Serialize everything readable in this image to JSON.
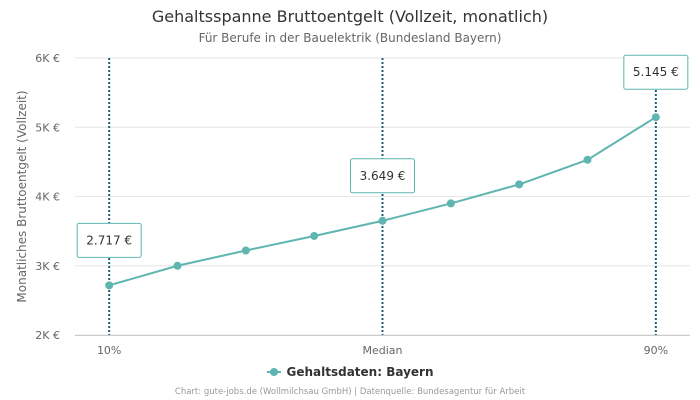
{
  "chart_data": {
    "type": "line",
    "title": "Gehaltsspanne Bruttoentgelt (Vollzeit, monatlich)",
    "subtitle": "Für Berufe in der Bauelektrik (Bundesland Bayern)",
    "ylabel": "Monatliches Bruttoentgelt (Vollzeit)",
    "xlabel": "",
    "ylim": [
      2000,
      6000
    ],
    "yticks": [
      {
        "value": 2000,
        "label": "2K €"
      },
      {
        "value": 3000,
        "label": "3K €"
      },
      {
        "value": 4000,
        "label": "4K €"
      },
      {
        "value": 5000,
        "label": "5K €"
      },
      {
        "value": 6000,
        "label": "6K €"
      }
    ],
    "x": [
      10,
      20,
      30,
      40,
      50,
      60,
      70,
      80,
      90
    ],
    "xticks": [
      {
        "value": 10,
        "label": "10%"
      },
      {
        "value": 50,
        "label": "Median"
      },
      {
        "value": 90,
        "label": "90%"
      }
    ],
    "series": [
      {
        "name": "Gehaltsdaten: Bayern",
        "color": "#5fb5b0",
        "values": [
          2717,
          3000,
          3220,
          3430,
          3649,
          3900,
          4175,
          4530,
          5145
        ]
      }
    ],
    "annotations": [
      {
        "x": 10,
        "y": 2717,
        "label": "2.717 €"
      },
      {
        "x": 50,
        "y": 3649,
        "label": "3.649 €"
      },
      {
        "x": 90,
        "y": 5145,
        "label": "5.145 €"
      }
    ],
    "grid": true,
    "legend_position": "bottom",
    "credits": "Chart: gute-jobs.de (Wollmilchsau GmbH) | Datenquelle: Bundesagentur für Arbeit",
    "colors": {
      "line": "#5fb5b0",
      "plotline": "#1f5f7a",
      "grid": "#e6e6e6",
      "label_border": "#5fb5b0"
    }
  }
}
